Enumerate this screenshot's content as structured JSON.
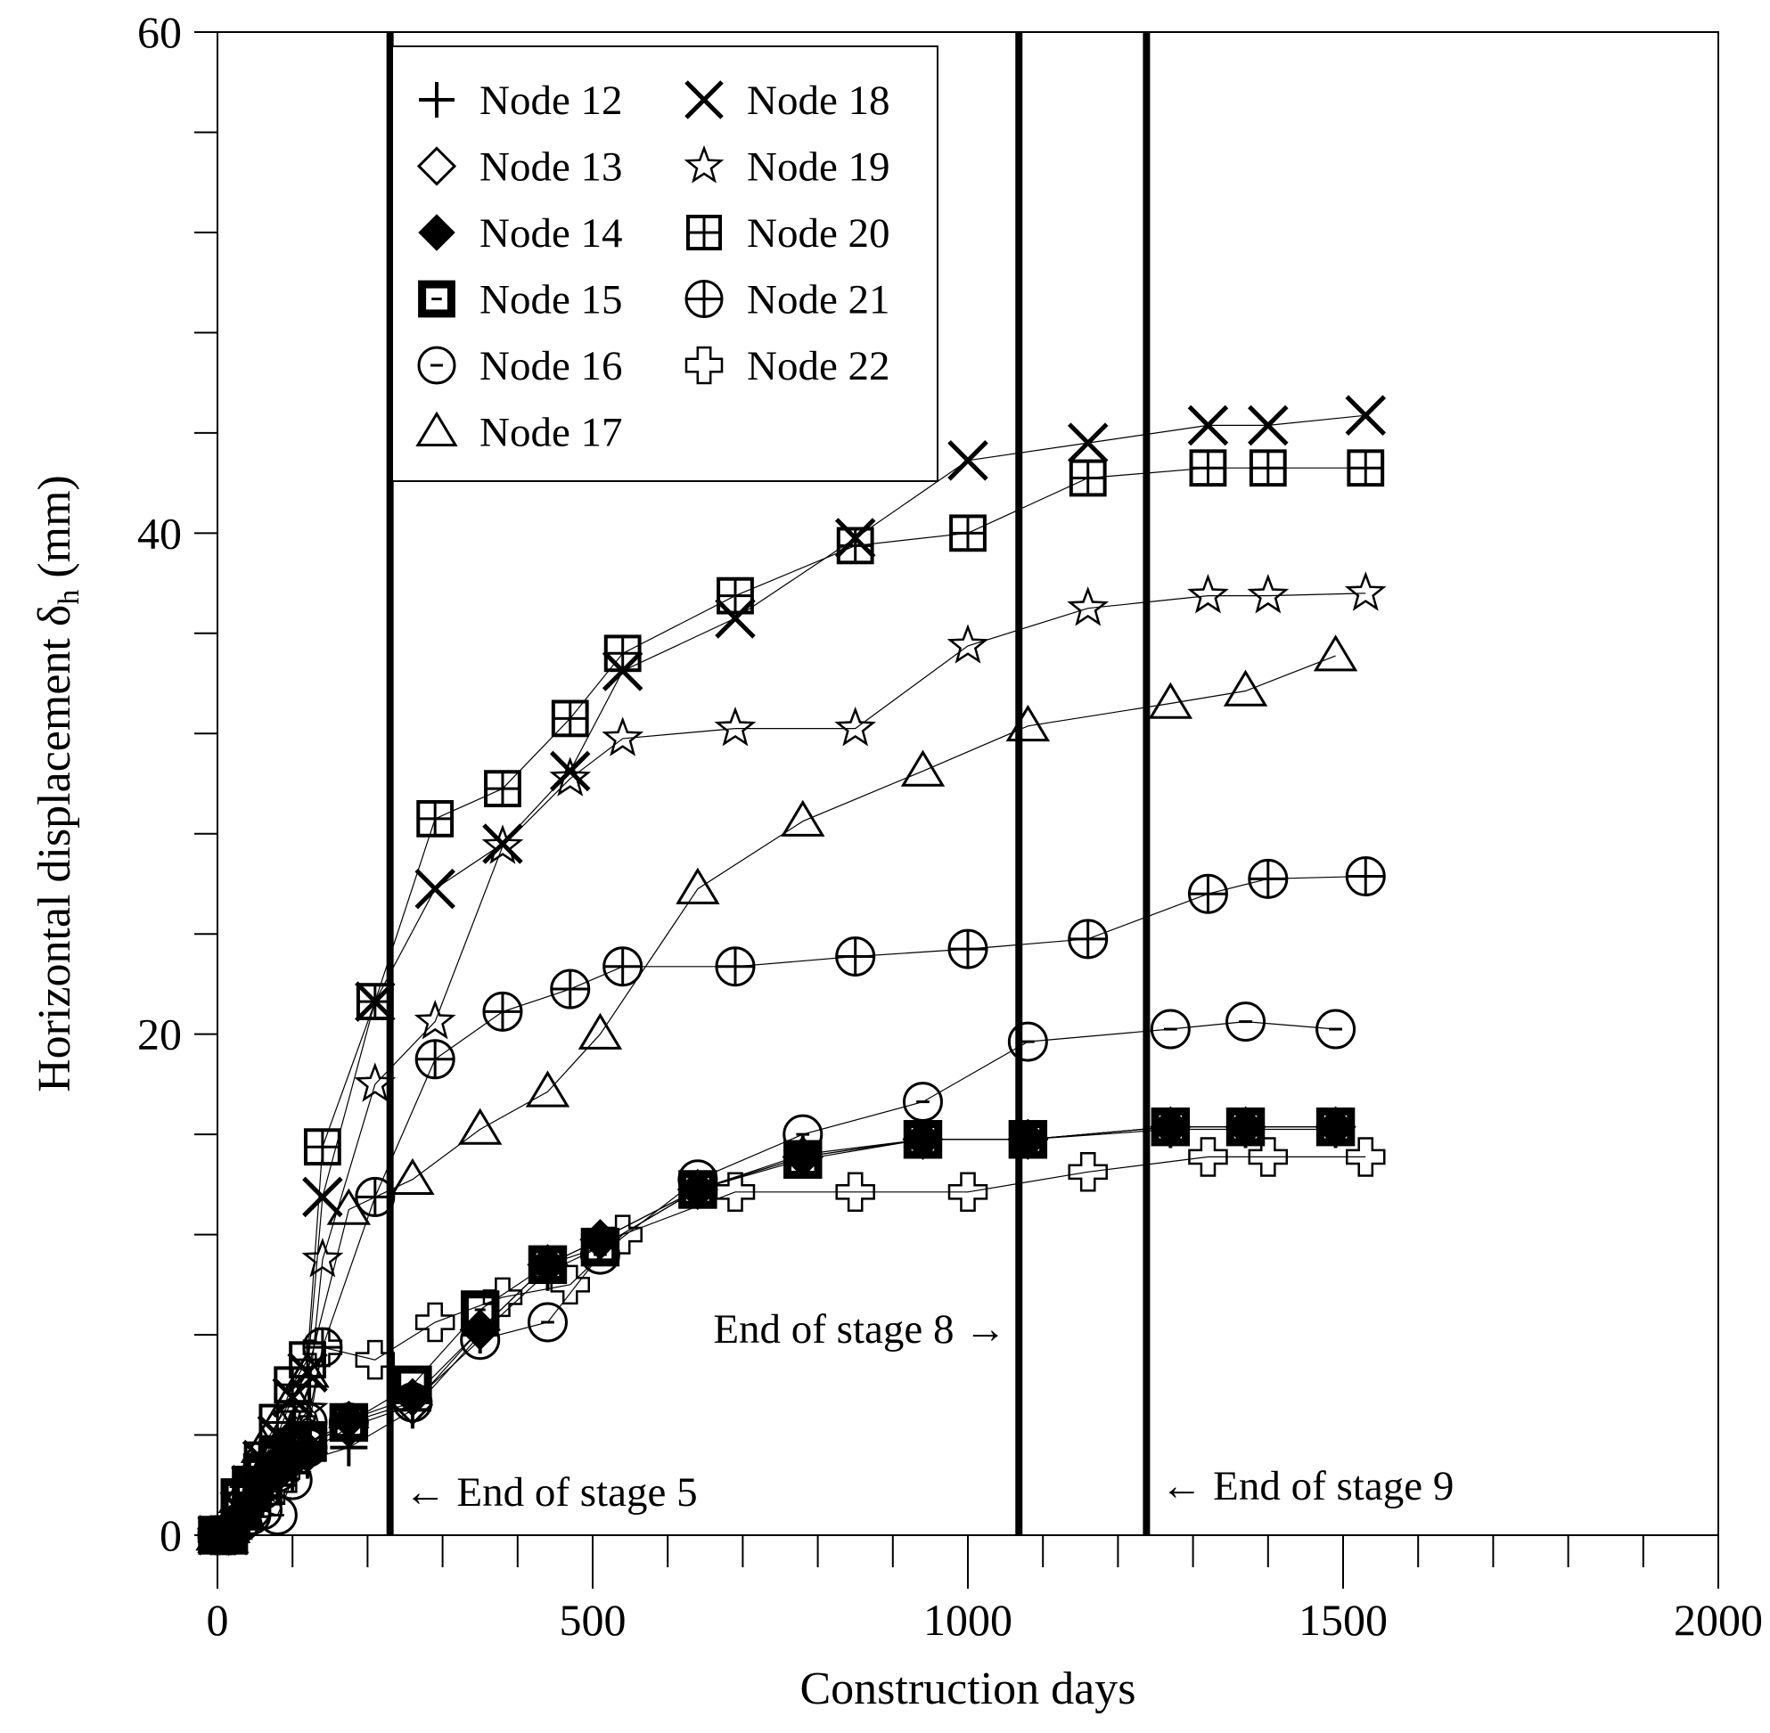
{
  "chart_data": {
    "type": "scatter",
    "xlabel": "Construction days",
    "ylabel": "Horizontal displacement δh (mm)",
    "ylabel_main": "Horizontal displacement δ",
    "ylabel_sub": "h",
    "ylabel_unit": " (mm)",
    "xlim": [
      0,
      2000
    ],
    "ylim": [
      0,
      60
    ],
    "x_ticks": [
      0,
      500,
      1000,
      1500,
      2000
    ],
    "y_ticks": [
      0,
      20,
      40,
      60
    ],
    "x_minor_step": 100,
    "y_minor_step": 4,
    "grid": false,
    "legend_position": "top-left",
    "series": [
      {
        "name": "Node 12",
        "marker": "plus",
        "x": [
          0,
          15,
          30,
          45,
          60,
          80,
          100,
          120,
          175,
          260,
          350,
          440,
          510,
          640,
          780,
          940,
          1080,
          1270,
          1370,
          1490
        ],
        "y": [
          0,
          0,
          0.5,
          1,
          1.5,
          2,
          2.5,
          3,
          3.5,
          5,
          8,
          10.5,
          11.5,
          13.8,
          15.2,
          15.8,
          15.8,
          16.2,
          16.2,
          16.2
        ]
      },
      {
        "name": "Node 13",
        "marker": "diamond-open",
        "x": [
          0,
          15,
          30,
          45,
          60,
          80,
          100,
          120,
          175,
          260,
          350,
          440,
          510,
          640,
          780,
          940,
          1080,
          1270,
          1370,
          1490
        ],
        "y": [
          0,
          0,
          0.7,
          1.2,
          1.8,
          2.5,
          3,
          3.3,
          4.3,
          5.2,
          8.2,
          10.8,
          11.8,
          13.8,
          15.1,
          15.8,
          15.8,
          16.3,
          16.3,
          16.3
        ]
      },
      {
        "name": "Node 14",
        "marker": "diamond-filled",
        "x": [
          0,
          15,
          30,
          45,
          60,
          80,
          100,
          120,
          175,
          260,
          350,
          440,
          510,
          640,
          780,
          940,
          1080,
          1270,
          1370,
          1490
        ],
        "y": [
          0,
          0,
          0.8,
          1.3,
          2,
          2.6,
          3.1,
          3.4,
          4.6,
          5.5,
          8.2,
          10.8,
          11.8,
          13.8,
          15.1,
          15.8,
          15.8,
          16.3,
          16.3,
          16.3
        ]
      },
      {
        "name": "Node 15",
        "marker": "square-thick",
        "x": [
          0,
          15,
          30,
          45,
          60,
          80,
          100,
          120,
          175,
          260,
          350,
          440,
          510,
          640,
          780,
          940,
          1080,
          1270,
          1370,
          1490
        ],
        "y": [
          0,
          0,
          1.5,
          2,
          2.5,
          3,
          3.5,
          3.7,
          4.5,
          6,
          9,
          10.8,
          11.5,
          13.8,
          15,
          15.8,
          15.8,
          16.3,
          16.3,
          16.3
        ]
      },
      {
        "name": "Node 16",
        "marker": "circle-dash",
        "x": [
          0,
          15,
          30,
          45,
          60,
          80,
          100,
          120,
          175,
          260,
          350,
          440,
          510,
          640,
          780,
          940,
          1080,
          1270,
          1370,
          1490
        ],
        "y": [
          0,
          0,
          0.5,
          0.8,
          1,
          0.8,
          2.2,
          3.5,
          4.5,
          5.3,
          7.8,
          8.5,
          11.2,
          14.2,
          16,
          17.3,
          19.7,
          20.2,
          20.5,
          20.2
        ]
      },
      {
        "name": "Node 17",
        "marker": "triangle-open",
        "x": [
          0,
          15,
          30,
          45,
          60,
          80,
          100,
          120,
          175,
          260,
          350,
          440,
          510,
          640,
          780,
          940,
          1080,
          1270,
          1370,
          1490
        ],
        "y": [
          0,
          0.3,
          1.5,
          2.5,
          3.5,
          4.5,
          5.5,
          6.5,
          13,
          14.2,
          16.2,
          17.7,
          20,
          25.8,
          28.5,
          30.5,
          32.3,
          33.2,
          33.7,
          35.1
        ]
      },
      {
        "name": "Node 18",
        "marker": "x-cross",
        "x": [
          0,
          15,
          30,
          45,
          60,
          80,
          100,
          120,
          140,
          210,
          290,
          380,
          470,
          540,
          690,
          850,
          1000,
          1160,
          1320,
          1400,
          1530
        ],
        "y": [
          0,
          0,
          1,
          2,
          3,
          4,
          5.5,
          6.5,
          13.5,
          21.3,
          25.8,
          27.6,
          30.5,
          34.5,
          36.6,
          39.8,
          42.9,
          43.6,
          44.3,
          44.3,
          44.7
        ]
      },
      {
        "name": "Node 19",
        "marker": "star-open",
        "x": [
          0,
          15,
          30,
          45,
          60,
          80,
          100,
          120,
          140,
          210,
          290,
          380,
          470,
          540,
          690,
          850,
          1000,
          1160,
          1320,
          1400,
          1530
        ],
        "y": [
          0,
          0,
          0.5,
          1,
          2,
          3,
          4,
          5,
          11,
          18,
          20.5,
          27.5,
          30.2,
          31.8,
          32.2,
          32.2,
          35.5,
          37,
          37.5,
          37.5,
          37.6
        ]
      },
      {
        "name": "Node 20",
        "marker": "square-grid",
        "x": [
          0,
          15,
          30,
          45,
          60,
          80,
          100,
          120,
          140,
          210,
          290,
          380,
          470,
          540,
          690,
          850,
          1000,
          1160,
          1320,
          1400,
          1530
        ],
        "y": [
          0,
          0,
          1,
          2,
          3,
          4.5,
          6,
          7,
          15.5,
          21.3,
          28.6,
          29.8,
          32.6,
          35.2,
          37.5,
          39.5,
          40,
          42.2,
          42.6,
          42.6,
          42.6
        ]
      },
      {
        "name": "Node 21",
        "marker": "circle-plus",
        "x": [
          0,
          15,
          30,
          45,
          60,
          80,
          100,
          120,
          140,
          210,
          290,
          380,
          470,
          540,
          690,
          850,
          1000,
          1160,
          1320,
          1400,
          1530
        ],
        "y": [
          0,
          0,
          0.5,
          1,
          1.8,
          2.5,
          3.5,
          4.5,
          7.5,
          13.5,
          19,
          20.9,
          21.8,
          22.7,
          22.7,
          23.1,
          23.4,
          23.8,
          25.6,
          26.2,
          26.3
        ]
      },
      {
        "name": "Node 22",
        "marker": "cross-open",
        "x": [
          0,
          15,
          30,
          45,
          60,
          80,
          100,
          120,
          140,
          210,
          290,
          380,
          470,
          540,
          690,
          850,
          1000,
          1160,
          1320,
          1400,
          1530
        ],
        "y": [
          0,
          0,
          0.5,
          1,
          1.5,
          2,
          3,
          4,
          7.5,
          7,
          8.5,
          9.5,
          10,
          12,
          13.7,
          13.7,
          13.7,
          14.5,
          15.1,
          15.1,
          15.1
        ]
      }
    ],
    "stage_lines": [
      {
        "x": 230,
        "label": "← End of stage 5",
        "side": "right"
      },
      {
        "x": 1068,
        "label": "End of stage 8 →",
        "side": "left"
      },
      {
        "x": 1238,
        "label": "← End of stage 9",
        "side": "right"
      }
    ]
  }
}
